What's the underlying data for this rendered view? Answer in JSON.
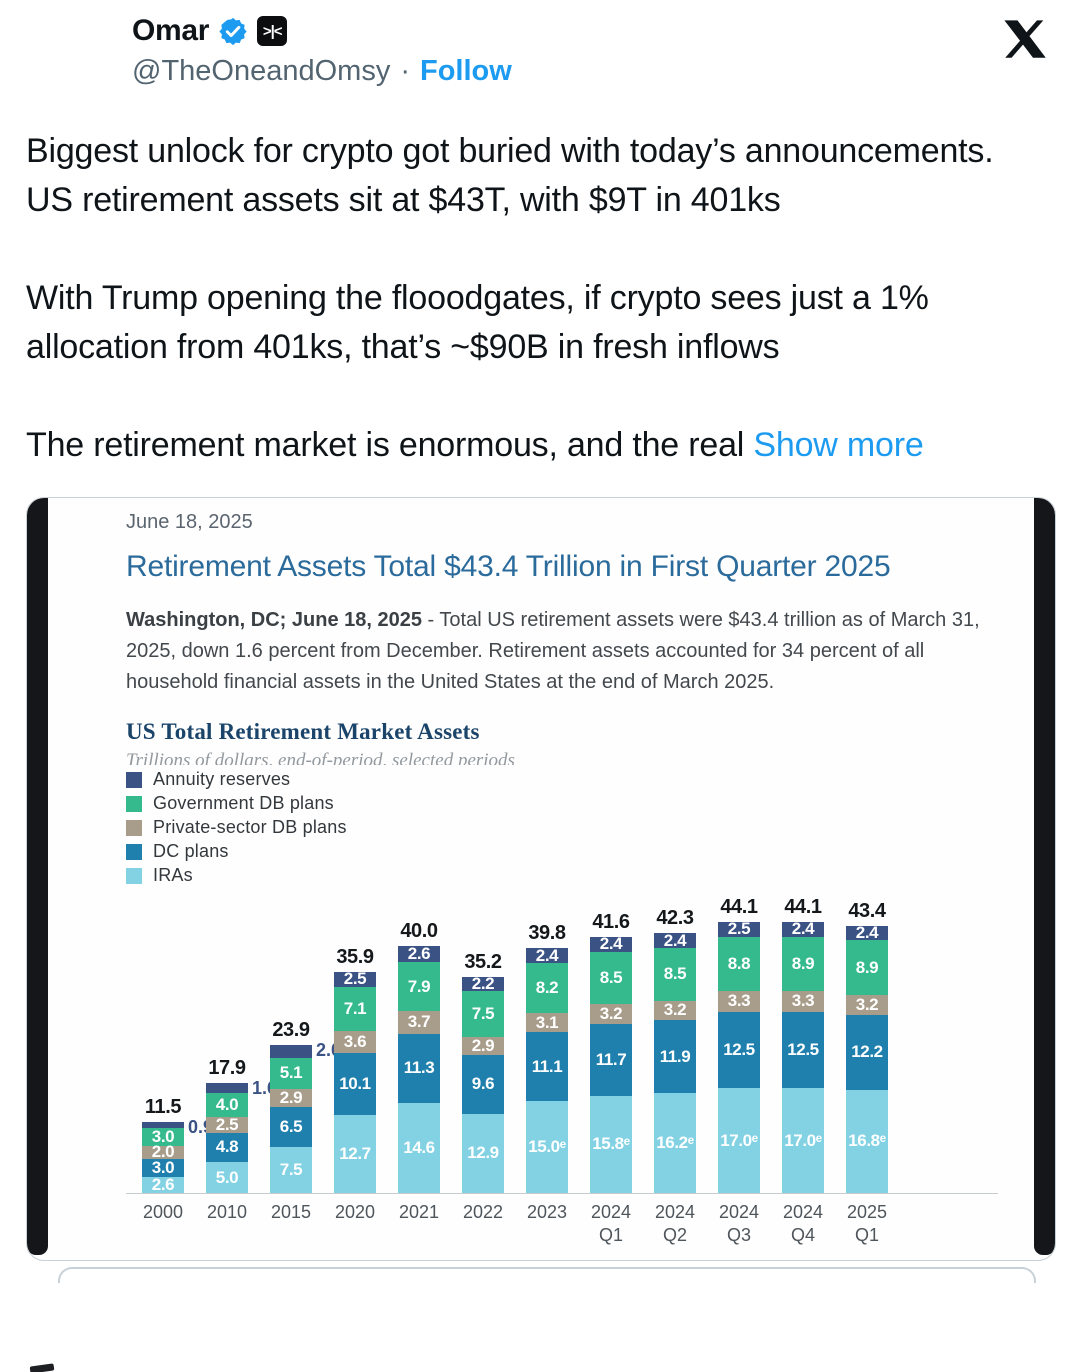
{
  "header": {
    "display_name": "Omar",
    "badge_label": ">|<",
    "handle": "@TheOneandOmsy",
    "separator": "·",
    "follow_label": "Follow"
  },
  "tweet": {
    "paragraphs": [
      "Biggest unlock for crypto got buried with today’s announcements. US retirement assets sit at $43T, with $9T in 401ks",
      "With Trump opening the flooodgates, if crypto sees just a 1% allocation from 401ks, that’s ~$90B in fresh inflows",
      "The retirement market is enormous, and the real"
    ],
    "show_more_label": "Show more"
  },
  "article": {
    "date": "June 18, 2025",
    "title": "Retirement Assets Total $43.4 Trillion in First Quarter 2025",
    "body_bold": "Washington, DC; June 18, 2025",
    "body_rest": " - Total US retirement assets were $43.4 trillion as of March 31, 2025, down 1.6 percent from December. Retirement assets accounted for 34 percent of all household financial assets in the United States at the end of March 2025."
  },
  "chart_data": {
    "type": "bar",
    "stacked": true,
    "title": "US Total Retirement Market Assets",
    "subtitle": "Trillions of dollars, end-of-period, selected periods",
    "legend_position": "top-left",
    "legend": [
      {
        "name": "Annuity reserves",
        "color": "#3a5284"
      },
      {
        "name": "Government DB plans",
        "color": "#35ba8d"
      },
      {
        "name": "Private-sector DB plans",
        "color": "#a89d8b"
      },
      {
        "name": "DC plans",
        "color": "#1f80ae"
      },
      {
        "name": "IRAs",
        "color": "#82d2e4"
      }
    ],
    "categories": [
      "2000",
      "2010",
      "2015",
      "2020",
      "2021",
      "2022",
      "2023",
      "2024 Q1",
      "2024 Q2",
      "2024 Q3",
      "2024 Q4",
      "2025 Q1"
    ],
    "x_tick_lines": [
      [
        "2000"
      ],
      [
        "2010"
      ],
      [
        "2015"
      ],
      [
        "2020"
      ],
      [
        "2021"
      ],
      [
        "2022"
      ],
      [
        "2023"
      ],
      [
        "2024",
        "Q1"
      ],
      [
        "2024",
        "Q2"
      ],
      [
        "2024",
        "Q3"
      ],
      [
        "2024",
        "Q4"
      ],
      [
        "2025",
        "Q1"
      ]
    ],
    "total_labels": [
      "11.5",
      "17.9",
      "23.9",
      "35.9",
      "40.0",
      "35.2",
      "39.8",
      "41.6",
      "42.3",
      "44.1",
      "44.1",
      "43.4"
    ],
    "totals": [
      11.5,
      17.9,
      23.9,
      35.9,
      40.0,
      35.2,
      39.8,
      41.6,
      42.3,
      44.1,
      44.1,
      43.4
    ],
    "series": [
      {
        "name": "IRAs",
        "values": [
          2.6,
          5.0,
          7.5,
          12.7,
          14.6,
          12.9,
          15.0,
          15.8,
          16.2,
          17.0,
          17.0,
          16.8
        ],
        "labels": [
          "2.6",
          "5.0",
          "7.5",
          "12.7",
          "14.6",
          "12.9",
          "15.0ᵉ",
          "15.8ᵉ",
          "16.2ᵉ",
          "17.0ᵉ",
          "17.0ᵉ",
          "16.8ᵉ"
        ]
      },
      {
        "name": "DC plans",
        "values": [
          3.0,
          4.8,
          6.5,
          10.1,
          11.3,
          9.6,
          11.1,
          11.7,
          11.9,
          12.5,
          12.5,
          12.2
        ]
      },
      {
        "name": "Private-sector DB plans",
        "values": [
          2.0,
          2.5,
          2.9,
          3.6,
          3.7,
          2.9,
          3.1,
          3.2,
          3.2,
          3.3,
          3.3,
          3.2
        ]
      },
      {
        "name": "Government DB plans",
        "values": [
          3.0,
          4.0,
          5.1,
          7.1,
          7.9,
          7.5,
          8.2,
          8.5,
          8.5,
          8.8,
          8.9,
          8.9
        ]
      },
      {
        "name": "Annuity reserves",
        "values": [
          0.9,
          1.6,
          2.0,
          2.5,
          2.6,
          2.2,
          2.4,
          2.4,
          2.4,
          2.5,
          2.4,
          2.4
        ],
        "label_outside": [
          true,
          true,
          true,
          false,
          false,
          false,
          false,
          false,
          false,
          false,
          false,
          false
        ]
      }
    ],
    "series_order_bottom_to_top": [
      "IRAs",
      "DC plans",
      "Private-sector DB plans",
      "Government DB plans",
      "Annuity reserves"
    ],
    "xlabel": "",
    "ylabel": "Trillions of dollars",
    "grid": false
  }
}
